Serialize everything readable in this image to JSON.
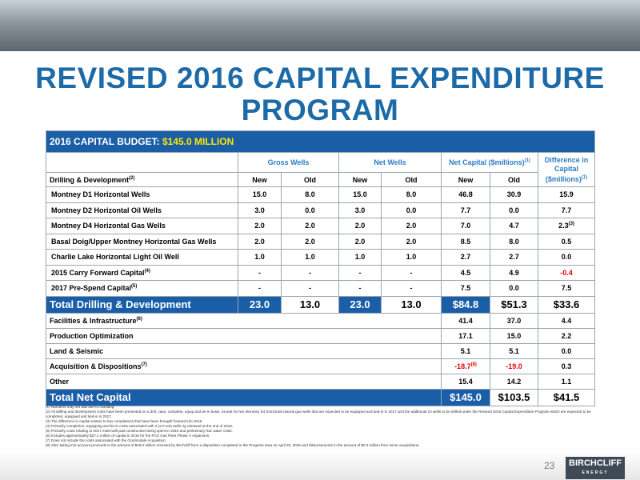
{
  "header": {
    "title": "REVISED 2016 CAPITAL EXPENDITURE PROGRAM"
  },
  "table": {
    "budget_label": "2016 CAPITAL BUDGET:",
    "budget_value": "$145.0 MILLION",
    "groups": [
      {
        "text": "Gross Wells"
      },
      {
        "text": "Net Wells"
      },
      {
        "text": "Net Capital ($millions)",
        "note": "(1)"
      }
    ],
    "difference_header": {
      "text": "Difference in Capital ($millions)",
      "note": "(1)"
    },
    "subheader": {
      "label": "Drilling & Development",
      "note": "(2)",
      "columns": [
        "New",
        "Old",
        "New",
        "Old",
        "New",
        "Old"
      ]
    },
    "rows": [
      {
        "label": "Montney D1 Horizontal Wells",
        "cells": [
          "15.0",
          "8.0",
          "15.0",
          "8.0",
          "46.8",
          "30.9",
          "15.9"
        ]
      },
      {
        "label": "Montney D2 Horizontal Oil Wells",
        "cells": [
          "3.0",
          "0.0",
          "3.0",
          "0.0",
          "7.7",
          "0.0",
          "7.7"
        ]
      },
      {
        "label": "Montney D4 Horizontal Gas Wells",
        "cells": [
          "2.0",
          "2.0",
          "2.0",
          "2.0",
          "7.0",
          "4.7",
          {
            "text": "2.3",
            "note": "(3)"
          }
        ]
      },
      {
        "label": "Basal Doig/Upper Montney Horizontal Gas Wells",
        "cells": [
          "2.0",
          "2.0",
          "2.0",
          "2.0",
          "8.5",
          "8.0",
          "0.5"
        ]
      },
      {
        "label": "Charlie Lake Horizontal Light Oil Well",
        "cells": [
          "1.0",
          "1.0",
          "1.0",
          "1.0",
          "2.7",
          "2.7",
          "0.0"
        ]
      },
      {
        "label": "2015 Carry Forward Capital",
        "note": "(4)",
        "cells": [
          "-",
          "-",
          "-",
          "-",
          "4.5",
          "4.9",
          "-0.4"
        ]
      },
      {
        "label": "2017 Pre-Spend Capital",
        "note": "(5)",
        "cells": [
          "-",
          "-",
          "-",
          "-",
          "7.5",
          "0.0",
          "7.5"
        ]
      },
      {
        "label": "Total Drilling & Development",
        "total": true,
        "cells": [
          "23.0",
          "13.0",
          "23.0",
          "13.0",
          "$84.8",
          "$51.3",
          "$33.6"
        ]
      },
      {
        "label": "Facilities & Infrastructure",
        "note": "(6)",
        "cells": [
          "41.4",
          "37.0",
          "4.4"
        ]
      },
      {
        "label": "Production Optimization",
        "cells": [
          "17.1",
          "15.0",
          "2.2"
        ]
      },
      {
        "label": "Land & Seismic",
        "cells": [
          "5.1",
          "5.1",
          "0.0"
        ]
      },
      {
        "label": "Acquisition & Dispositions",
        "note": "(7)",
        "cells": [
          {
            "text": "-18.7",
            "note": "(8)"
          },
          "-19.0",
          "0.3"
        ]
      },
      {
        "label": "Other",
        "cells": [
          "15.4",
          "14.2",
          "1.1"
        ]
      },
      {
        "label": "Total Net Capital",
        "total": true,
        "cells": [
          "$145.0",
          "$103.5",
          "$41.5"
        ]
      }
    ]
  },
  "footnotes": [
    "(1) Numbers may not add due to rounding.",
    "(2) All drilling and development costs have been presented on a drill, case, complete, equip and tie-in basis, except for two Montney D4 horizontal natural gas wells that are expected to be equipped and tied-in in 2017 and the additional 10 wells to be drilled under the Revised 2016 Capital Expenditure Program which are expected to be completed, equipped and tied-in in 2017.",
    "(3) The difference in capital relates to two completions that have been brought forward into 2016.",
    "(4) Primarily completion, equipping and tie-in costs associated with 2 (2.0 net) wells rig released at the end of 2015.",
    "(5) Primarily costs relating to 2017 multi-well pad construction being spent in 2016 and preliminary frac water costs.",
    "(6) Includes approximately $27.1 million of capital in 2016 for the PCS Gas Plant Phase V expansion.",
    "(7) Does not include the costs associated with the Gordondale Acquisition.",
    "(8) After taking into account proceeds in the amount of $19.0 million received by Birchcliff from a disposition completed in the Progress area on April 28, 2016 and disbursements in the amount of $0.3 million from minor acquisitions."
  ],
  "footer": {
    "page": "23",
    "logo": "BIRCHCLIFF",
    "logo_sub": "ENERGY"
  }
}
